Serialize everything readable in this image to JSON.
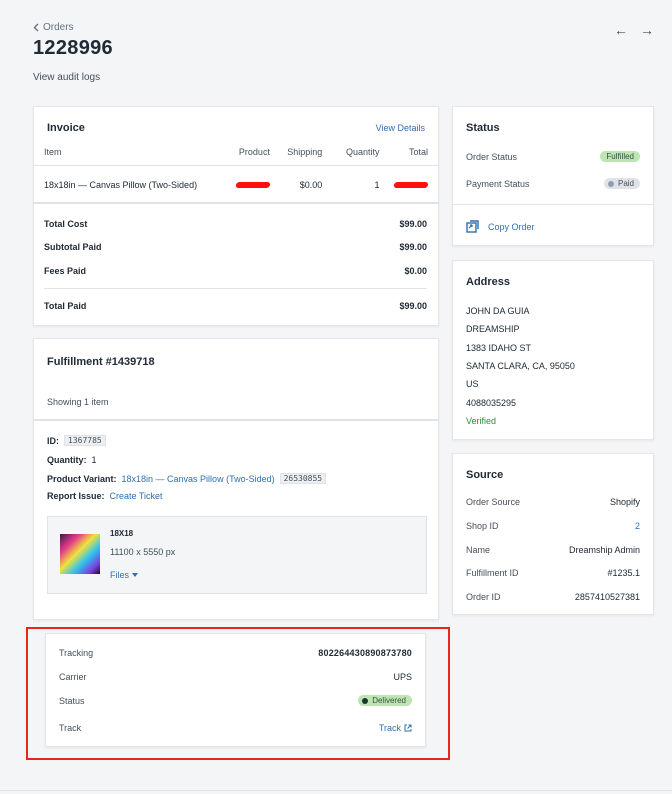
{
  "header": {
    "back_label": "Orders",
    "order_number": "1228996",
    "audit_link": "View audit logs",
    "prev_icon": "arrow-left-icon",
    "next_icon": "arrow-right-icon"
  },
  "invoice": {
    "title": "Invoice",
    "view_details": "View Details",
    "columns": [
      "Item",
      "Product",
      "Shipping",
      "Quantity",
      "Total"
    ],
    "row": {
      "item": "18x18in — Canvas Pillow (Two-Sided)",
      "shipping": "$0.00",
      "quantity": "1"
    },
    "totals": [
      {
        "label": "Total Cost",
        "value": "$99.00"
      },
      {
        "label": "Subtotal Paid",
        "value": "$99.00"
      },
      {
        "label": "Fees Paid",
        "value": "$0.00"
      },
      {
        "label": "Total Paid",
        "value": "$99.00"
      }
    ]
  },
  "fulfillment": {
    "title": "Fulfillment #1439718",
    "showing": "Showing 1 item",
    "id_label": "ID:",
    "id_value": "1367785",
    "quantity_label": "Quantity:",
    "quantity_value": "1",
    "variant_label": "Product Variant:",
    "variant_link": "18x18in — Canvas Pillow (Two-Sided)",
    "variant_id": "26530855",
    "report_label": "Report Issue:",
    "report_link": "Create Ticket",
    "asset": {
      "name": "18X18",
      "size": "11100 x 5550 px",
      "files_label": "Files"
    }
  },
  "tracking": {
    "tracking_label": "Tracking",
    "tracking_value": "802264430890873780",
    "carrier_label": "Carrier",
    "carrier_value": "UPS",
    "status_label": "Status",
    "status_value": "Delivered",
    "track_label": "Track",
    "track_link": "Track"
  },
  "status_card": {
    "title": "Status",
    "order_status_label": "Order Status",
    "order_status_value": "Fulfilled",
    "payment_status_label": "Payment Status",
    "payment_status_value": "Paid",
    "copy_order": "Copy Order"
  },
  "address": {
    "title": "Address",
    "lines": [
      "JOHN DA GUIA",
      "DREAMSHIP",
      "1383 IDAHO ST",
      "SANTA CLARA, CA, 95050",
      "US",
      "4088035295"
    ],
    "verified": "Verified"
  },
  "source": {
    "title": "Source",
    "rows": [
      {
        "label": "Order Source",
        "value": "Shopify"
      },
      {
        "label": "Shop ID",
        "value": "2"
      },
      {
        "label": "Name",
        "value": "Dreamship Admin"
      },
      {
        "label": "Fulfillment ID",
        "value": "#1235.1"
      },
      {
        "label": "Order ID",
        "value": "2857410527381"
      }
    ]
  },
  "colors": {
    "accent": "#2f6fb2",
    "highlight_border": "#e8261b",
    "verified": "#2d8a3e",
    "pill_green": "#bbe5b3"
  }
}
